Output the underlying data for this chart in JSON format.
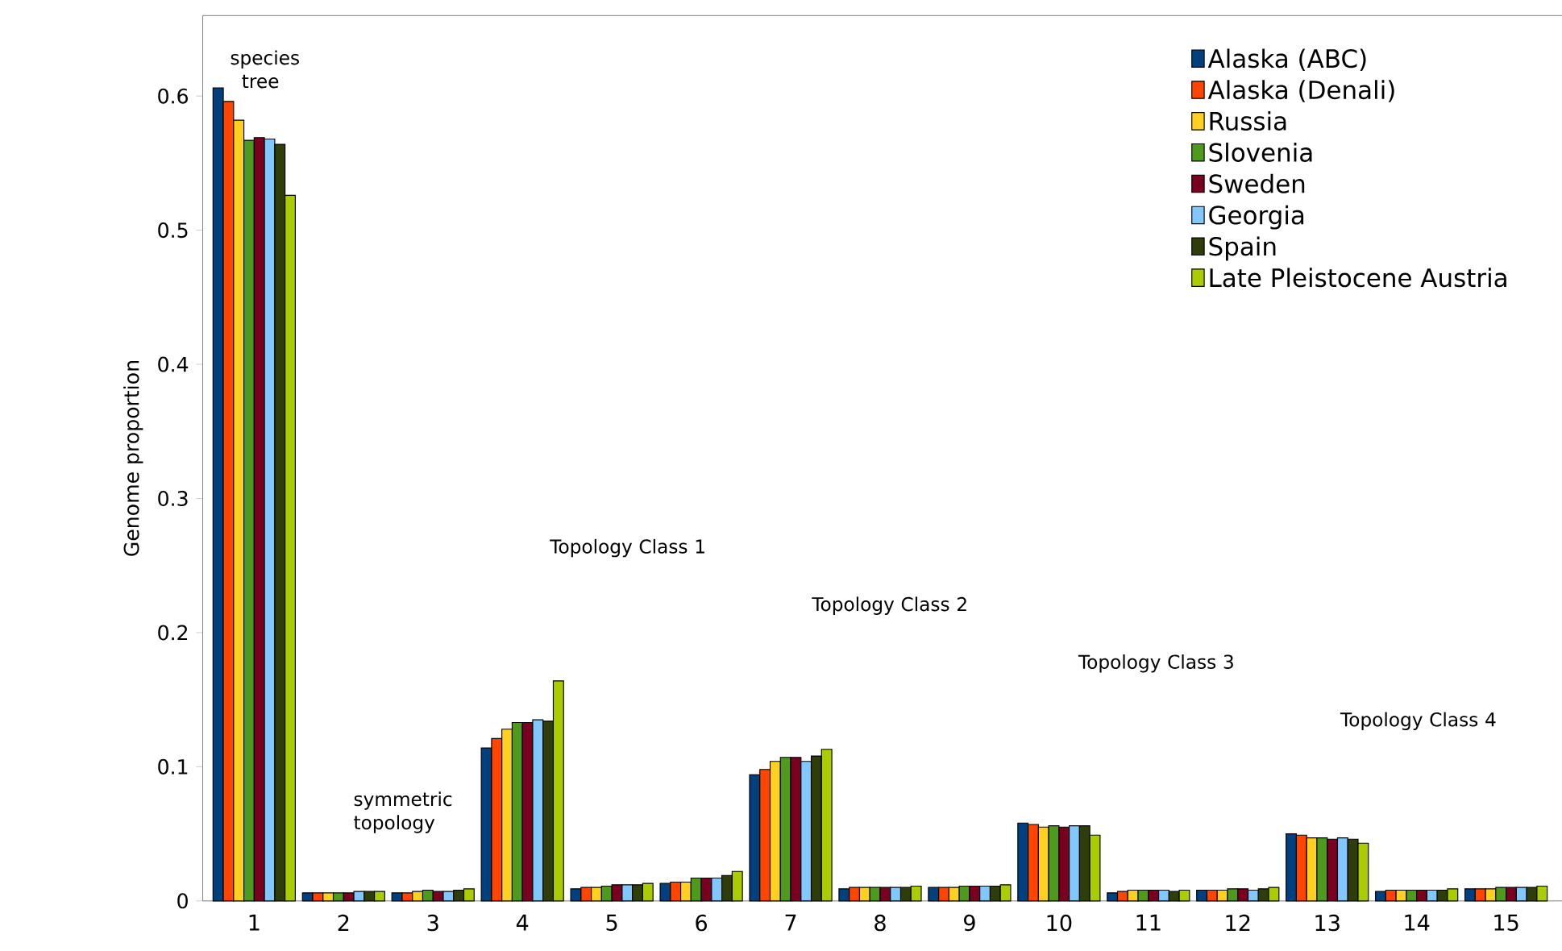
{
  "chart_data": {
    "type": "bar",
    "ylabel": "Genome proportion",
    "categories": [
      "1",
      "2",
      "3",
      "4",
      "5",
      "6",
      "7",
      "8",
      "9",
      "10",
      "11",
      "12",
      "13",
      "14",
      "15"
    ],
    "ylim": [
      0,
      0.66
    ],
    "yticks": [
      0,
      0.1,
      0.2,
      0.3,
      0.4,
      0.5,
      0.6
    ],
    "grid": false,
    "legend": "top right",
    "annotations": [
      "species tree",
      "symmetric topology",
      "Topology Class 1",
      "Topology Class 2",
      "Topology Class 3",
      "Topology Class 4"
    ],
    "series": [
      {
        "name": "Alaska (ABC)",
        "color": "#00407f",
        "values": [
          0.606,
          0.006,
          0.006,
          0.114,
          0.009,
          0.013,
          0.094,
          0.009,
          0.01,
          0.058,
          0.006,
          0.008,
          0.05,
          0.007,
          0.009
        ]
      },
      {
        "name": "Alaska (Denali)",
        "color": "#ff4500",
        "values": [
          0.596,
          0.006,
          0.006,
          0.121,
          0.01,
          0.014,
          0.098,
          0.01,
          0.01,
          0.057,
          0.007,
          0.008,
          0.049,
          0.008,
          0.009
        ]
      },
      {
        "name": "Russia",
        "color": "#ffd020",
        "values": [
          0.582,
          0.006,
          0.007,
          0.128,
          0.01,
          0.014,
          0.104,
          0.01,
          0.01,
          0.055,
          0.008,
          0.008,
          0.047,
          0.008,
          0.009
        ]
      },
      {
        "name": "Slovenia",
        "color": "#4e9a1e",
        "values": [
          0.567,
          0.006,
          0.008,
          0.133,
          0.011,
          0.017,
          0.107,
          0.01,
          0.011,
          0.056,
          0.008,
          0.009,
          0.047,
          0.008,
          0.01
        ]
      },
      {
        "name": "Sweden",
        "color": "#7a0020",
        "values": [
          0.569,
          0.006,
          0.007,
          0.133,
          0.012,
          0.017,
          0.107,
          0.01,
          0.011,
          0.055,
          0.008,
          0.009,
          0.046,
          0.008,
          0.01
        ]
      },
      {
        "name": "Georgia",
        "color": "#80c8ff",
        "values": [
          0.568,
          0.007,
          0.007,
          0.135,
          0.012,
          0.017,
          0.104,
          0.01,
          0.011,
          0.056,
          0.008,
          0.008,
          0.047,
          0.008,
          0.01
        ]
      },
      {
        "name": "Spain",
        "color": "#2e3d0a",
        "values": [
          0.564,
          0.007,
          0.008,
          0.134,
          0.012,
          0.019,
          0.108,
          0.01,
          0.011,
          0.056,
          0.007,
          0.009,
          0.046,
          0.008,
          0.01
        ]
      },
      {
        "name": "Late Pleistocene Austria",
        "color": "#aacc00",
        "values": [
          0.526,
          0.007,
          0.009,
          0.164,
          0.013,
          0.022,
          0.113,
          0.011,
          0.012,
          0.049,
          0.008,
          0.01,
          0.043,
          0.009,
          0.011
        ]
      }
    ]
  }
}
